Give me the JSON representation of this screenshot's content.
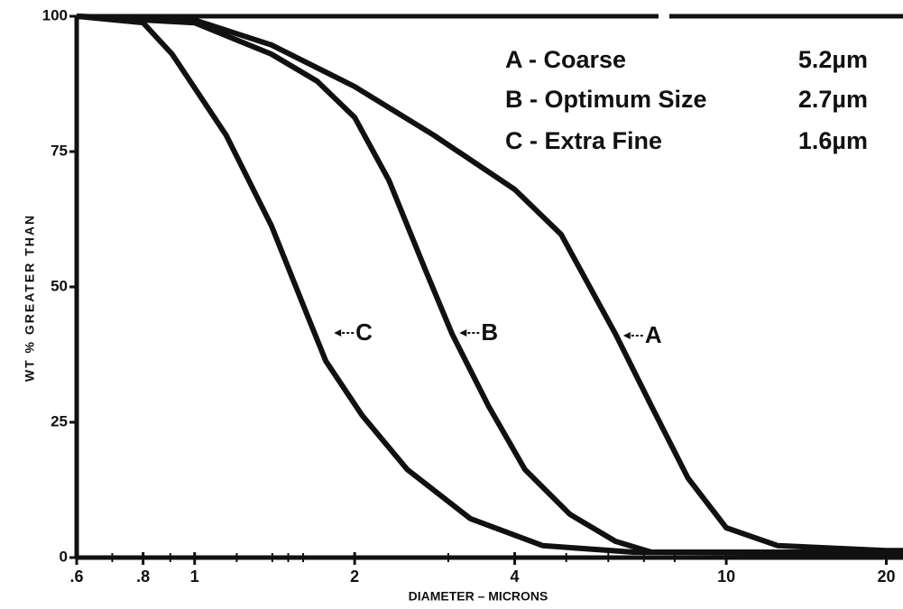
{
  "chart_data": {
    "type": "line",
    "xlabel": "DIAMETER – MICRONS",
    "ylabel": "WT % GREATER THAN",
    "xscale": "log",
    "xlim": [
      0.6,
      21.5
    ],
    "ylim": [
      0,
      100
    ],
    "xticks": [
      {
        "value": 0.6,
        "label": ".6"
      },
      {
        "value": 0.8,
        "label": ".8"
      },
      1,
      2,
      4,
      10,
      20
    ],
    "xminorticks": [
      0.7,
      0.9,
      1.2,
      1.4,
      1.5,
      1.6,
      3,
      5,
      6,
      7,
      8
    ],
    "yticks": [
      0,
      25,
      50,
      75,
      100
    ],
    "series": [
      {
        "name": "A - Coarse",
        "size": "5.2µm",
        "color": "#111111",
        "x": [
          0.6,
          1,
          1.395,
          2,
          2.82,
          4,
          4.89,
          6.19,
          7.23,
          8.47,
          10,
          12.5,
          20,
          21.5
        ],
        "values": [
          100,
          99.3,
          94.7,
          87,
          78,
          68,
          59.7,
          41.3,
          28,
          14.7,
          5.5,
          2.2,
          1.3,
          1.3
        ]
      },
      {
        "name": "B - Optimum Size",
        "size": "2.7µm",
        "color": "#111111",
        "x": [
          0.6,
          1,
          1.395,
          1.7,
          2,
          2.32,
          2.72,
          3.05,
          3.57,
          4.18,
          5.08,
          6.19,
          7.23,
          20,
          21.5
        ],
        "values": [
          100,
          98.8,
          93,
          88,
          81.3,
          69.7,
          53,
          41.3,
          28,
          16.3,
          8,
          3,
          1,
          1,
          1
        ]
      },
      {
        "name": "C - Extra Fine",
        "size": "1.6µm",
        "color": "#111111",
        "x": [
          0.6,
          0.8,
          0.907,
          1.147,
          1.395,
          1.63,
          1.765,
          2.065,
          2.51,
          3.3,
          4.52,
          6.69,
          20,
          21.5
        ],
        "values": [
          100,
          98.8,
          93,
          78,
          61.3,
          44.7,
          36.3,
          26.3,
          16.3,
          7.2,
          2.2,
          1,
          0.8,
          0.8
        ]
      }
    ],
    "annotations": [
      {
        "text": "A",
        "x": 6.3,
        "y": 41
      },
      {
        "text": "B",
        "x": 3.1,
        "y": 41.5
      },
      {
        "text": "C",
        "x": 1.8,
        "y": 41.5
      }
    ]
  }
}
